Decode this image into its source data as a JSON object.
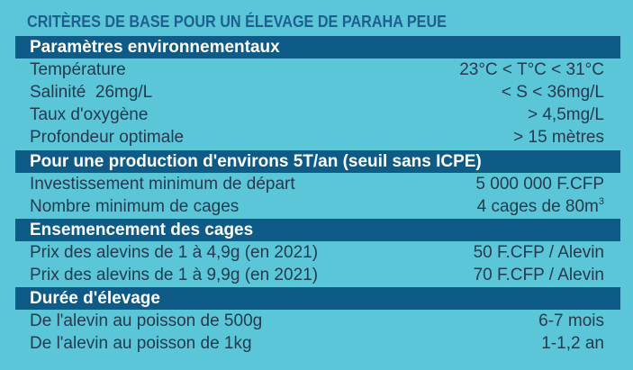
{
  "title": "CRITÈRES DE BASE POUR UN ÉLEVAGE DE PARAHA PEUE",
  "sections": [
    {
      "header": "Paramètres environnementaux",
      "rows": [
        {
          "label": "Température",
          "value": "23°C < T°C < 31°C"
        },
        {
          "label": "Salinité  26mg/L",
          "value": "< S < 36mg/L"
        },
        {
          "label": "Taux d'oxygène",
          "value": "> 4,5mg/L"
        },
        {
          "label": "Profondeur optimale",
          "value": "> 15 mètres"
        }
      ]
    },
    {
      "header": "Pour une production d'environs 5T/an (seuil sans ICPE)",
      "rows": [
        {
          "label": "Investissement minimum de départ",
          "value": "5 000 000 F.CFP"
        },
        {
          "label": "Nombre minimum de cages",
          "value": "4 cages de 80m",
          "value_sup": "3"
        }
      ]
    },
    {
      "header": "Ensemencement des cages",
      "rows": [
        {
          "label": "Prix des alevins de 1 à 4,9g (en 2021)",
          "value": "50 F.CFP / Alevin"
        },
        {
          "label": "Prix des alevins de 1 à 9,9g (en 2021)",
          "value": "70 F.CFP / Alevin"
        }
      ]
    },
    {
      "header": "Durée d'élevage",
      "rows": [
        {
          "label": "De l'alevin au poisson de 500g",
          "value": "6-7 mois"
        },
        {
          "label": "De l'alevin au poisson de 1kg",
          "value": "1-1,2 an"
        }
      ]
    }
  ],
  "colors": {
    "background": "#5cc6d9",
    "section_header": "#0e5b87",
    "title": "#1f5f8f",
    "text": "#243a4e"
  }
}
